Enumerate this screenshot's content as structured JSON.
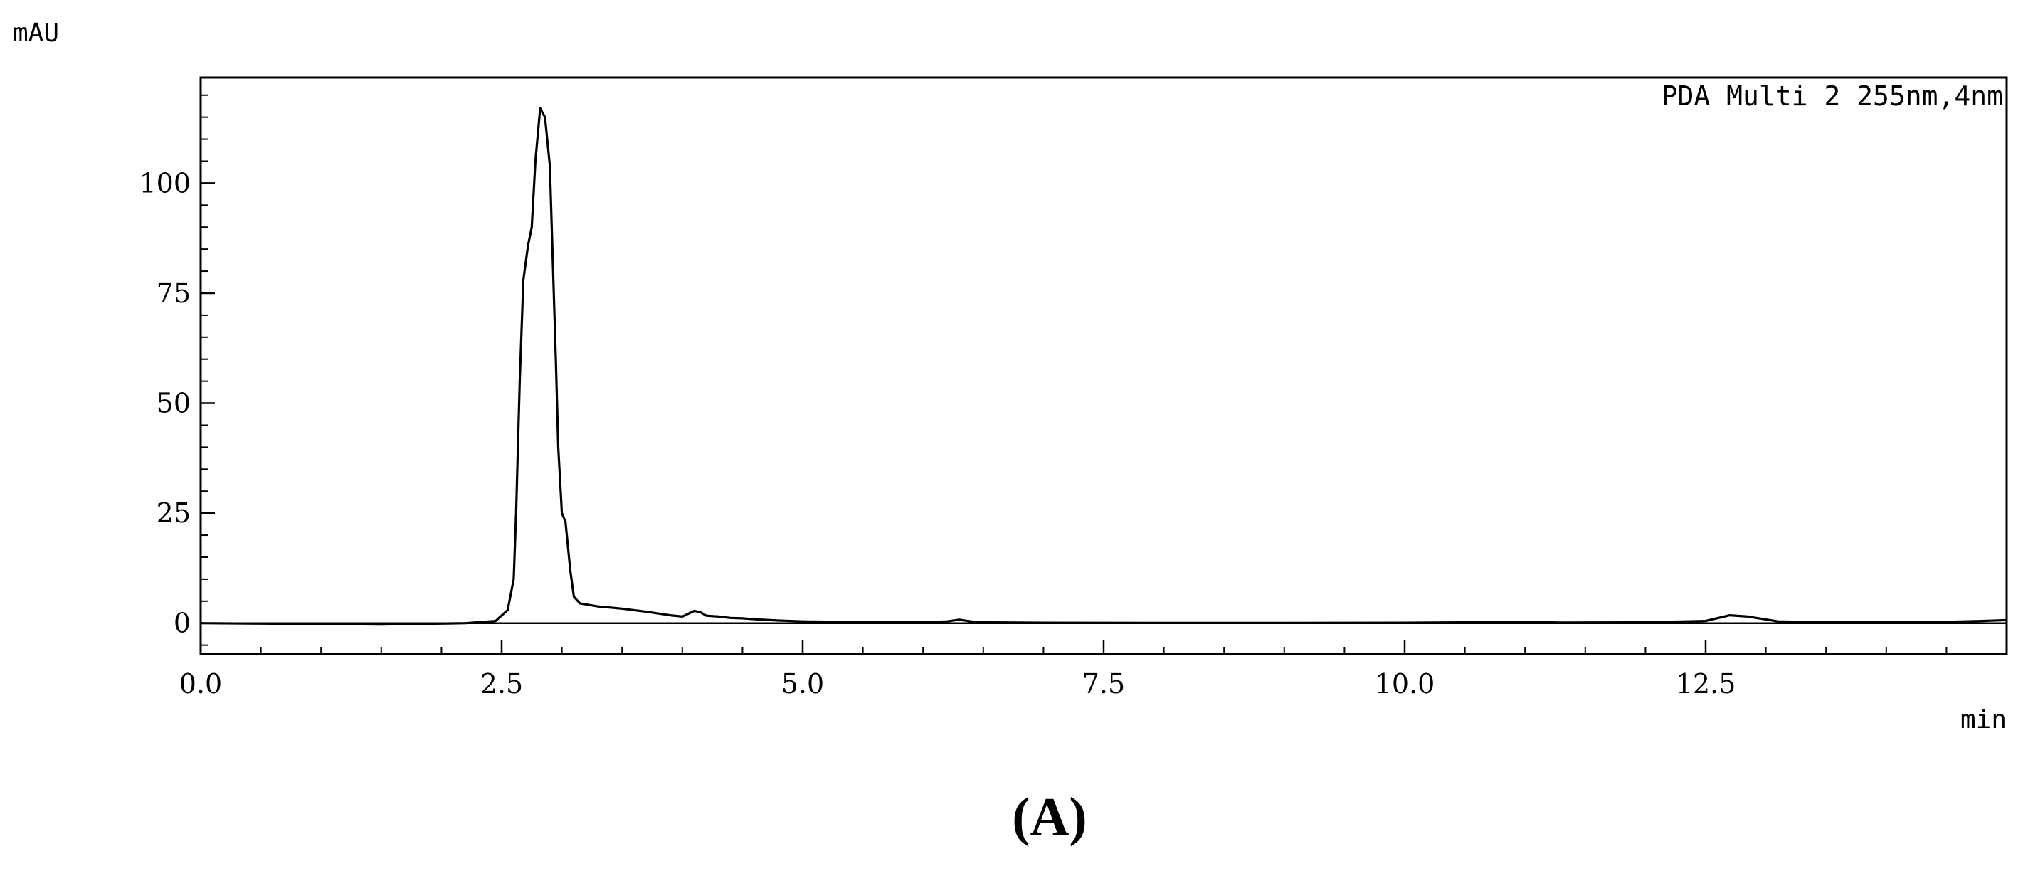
{
  "chart_data": {
    "type": "line",
    "title": "",
    "trace_label": "PDA Multi 2 255nm,4nm",
    "ylabel": "mAU",
    "xlabel": "min",
    "panel_label": "(A)",
    "xlim": [
      0,
      15
    ],
    "ylim": [
      -7,
      124
    ],
    "x_ticks": [
      0,
      2.5,
      5,
      7.5,
      10,
      12.5
    ],
    "x_tick_labels": [
      "0.0",
      "2.5",
      "5.0",
      "7.5",
      "10.0",
      "12.5"
    ],
    "y_ticks": [
      0,
      25,
      50,
      75,
      100
    ],
    "y_tick_labels": [
      "0",
      "25",
      "50",
      "75",
      "100"
    ],
    "grid": false,
    "series": [
      {
        "x": [
          0.0,
          1.5,
          2.2,
          2.45,
          2.55,
          2.6,
          2.62,
          2.65,
          2.68,
          2.72,
          2.75,
          2.78,
          2.82,
          2.86,
          2.9,
          2.95,
          2.97,
          3.0,
          3.03,
          3.07,
          3.1,
          3.15,
          3.3,
          3.5,
          3.7,
          3.9,
          4.0,
          4.1,
          4.15,
          4.2,
          4.3,
          4.4,
          4.5,
          4.6,
          4.8,
          5.0,
          5.3,
          5.6,
          6.0,
          6.2,
          6.3,
          6.45,
          7.0,
          8.0,
          9.0,
          10.0,
          10.8,
          11.0,
          11.3,
          12.0,
          12.5,
          12.7,
          12.85,
          13.1,
          13.5,
          14.0,
          14.5,
          14.8,
          15.0
        ],
        "y": [
          0,
          -0.3,
          0,
          0.5,
          3,
          10,
          25,
          55,
          78,
          86,
          90,
          105,
          117,
          115,
          104,
          60,
          40,
          25,
          23,
          12,
          6,
          4.5,
          3.8,
          3.3,
          2.6,
          1.8,
          1.5,
          2.8,
          2.5,
          1.7,
          1.5,
          1.2,
          1.1,
          0.9,
          0.6,
          0.4,
          0.3,
          0.3,
          0.2,
          0.4,
          0.8,
          0.2,
          0.1,
          0.05,
          0.05,
          0.1,
          0.25,
          0.3,
          0.15,
          0.2,
          0.5,
          1.8,
          1.5,
          0.4,
          0.2,
          0.2,
          0.3,
          0.5,
          0.7
        ]
      }
    ],
    "baseline": 0
  }
}
